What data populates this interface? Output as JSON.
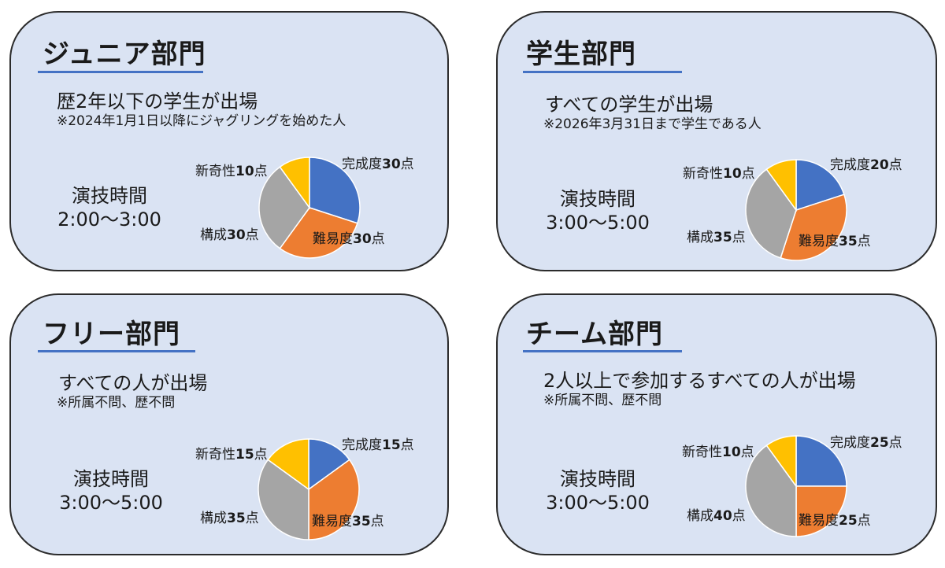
{
  "colors": {
    "card_bg": "#dae3f3",
    "underline": "#4472c4",
    "completeness": "#4472c4",
    "difficulty": "#ed7d31",
    "structure": "#a5a5a5",
    "novelty": "#ffc000"
  },
  "divisions": [
    {
      "title": "ジュニア部門",
      "eligibility": "歴2年以下の学生が出場",
      "note": "※2024年1月1日以降にジャグリングを始めた人",
      "time_label": "演技時間",
      "time_range": "2:00～3:00"
    },
    {
      "title": "学生部門",
      "eligibility": "すべての学生が出場",
      "note": "※2026年3月31日まで学生である人",
      "time_label": "演技時間",
      "time_range": "3:00～5:00"
    },
    {
      "title": "フリー部門",
      "eligibility": "すべての人が出場",
      "note": "※所属不問、歴不問",
      "time_label": "演技時間",
      "time_range": "3:00～5:00"
    },
    {
      "title": "チーム部門",
      "eligibility": "2人以上で参加するすべての人が出場",
      "note": "※所属不問、歴不問",
      "time_label": "演技時間",
      "time_range": "3:00～5:00"
    }
  ],
  "chart_data": [
    {
      "type": "pie",
      "categories": [
        "完成度",
        "難易度",
        "構成",
        "新奇性"
      ],
      "values": [
        30,
        30,
        30,
        10
      ],
      "unit": "点",
      "colors": [
        "#4472c4",
        "#ed7d31",
        "#a5a5a5",
        "#ffc000"
      ]
    },
    {
      "type": "pie",
      "categories": [
        "完成度",
        "難易度",
        "構成",
        "新奇性"
      ],
      "values": [
        20,
        35,
        35,
        10
      ],
      "unit": "点",
      "colors": [
        "#4472c4",
        "#ed7d31",
        "#a5a5a5",
        "#ffc000"
      ]
    },
    {
      "type": "pie",
      "categories": [
        "完成度",
        "難易度",
        "構成",
        "新奇性"
      ],
      "values": [
        15,
        35,
        35,
        15
      ],
      "unit": "点",
      "colors": [
        "#4472c4",
        "#ed7d31",
        "#a5a5a5",
        "#ffc000"
      ]
    },
    {
      "type": "pie",
      "categories": [
        "完成度",
        "難易度",
        "構成",
        "新奇性"
      ],
      "values": [
        25,
        25,
        40,
        10
      ],
      "unit": "点",
      "colors": [
        "#4472c4",
        "#ed7d31",
        "#a5a5a5",
        "#ffc000"
      ]
    }
  ]
}
